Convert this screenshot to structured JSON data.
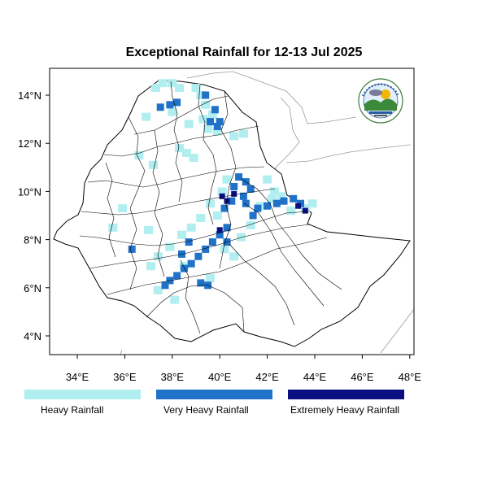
{
  "title": "Exceptional Rainfall for 12-13 Jul 2025",
  "axes": {
    "x_ticks": [
      {
        "value": 34,
        "label": "34°E"
      },
      {
        "value": 36,
        "label": "36°E"
      },
      {
        "value": 38,
        "label": "38°E"
      },
      {
        "value": 40,
        "label": "40°E"
      },
      {
        "value": 42,
        "label": "42°E"
      },
      {
        "value": 44,
        "label": "44°E"
      },
      {
        "value": 46,
        "label": "46°E"
      },
      {
        "value": 48,
        "label": "48°E"
      }
    ],
    "y_ticks": [
      {
        "value": 4,
        "label": "4°N"
      },
      {
        "value": 6,
        "label": "6°N"
      },
      {
        "value": 8,
        "label": "8°N"
      },
      {
        "value": 10,
        "label": "10°N"
      },
      {
        "value": 12,
        "label": "12°N"
      },
      {
        "value": 14,
        "label": "14°N"
      }
    ],
    "lon_range": [
      32.8,
      48.2
    ],
    "lat_range": [
      3.2,
      14.9
    ]
  },
  "legend": [
    {
      "label": "Heavy Rainfall",
      "color": "#b0eef0"
    },
    {
      "label": "Very Heavy Rainfall",
      "color": "#1f72c8"
    },
    {
      "label": "Extremely Heavy Rainfall",
      "color": "#0a0f82"
    }
  ],
  "colors": {
    "heavy": "#b0eef0",
    "very_heavy": "#1f72c8",
    "extreme": "#0a0f82",
    "outline": "#000000",
    "neighbor_border": "#9a9a9a"
  },
  "logo": {
    "icon": "meteorology-institute-logo-icon"
  },
  "rainfall_cells": {
    "heavy": [
      [
        37.3,
        14.3
      ],
      [
        37.6,
        14.5
      ],
      [
        38.0,
        14.5
      ],
      [
        38.3,
        14.3
      ],
      [
        39.0,
        14.3
      ],
      [
        39.2,
        14.0
      ],
      [
        39.4,
        13.6
      ],
      [
        39.7,
        13.2
      ],
      [
        39.3,
        13.0
      ],
      [
        39.5,
        12.6
      ],
      [
        39.9,
        12.5
      ],
      [
        41.0,
        12.4
      ],
      [
        40.6,
        12.3
      ],
      [
        38.7,
        12.8
      ],
      [
        38.0,
        13.3
      ],
      [
        36.9,
        13.1
      ],
      [
        36.6,
        11.5
      ],
      [
        37.2,
        11.1
      ],
      [
        38.3,
        11.8
      ],
      [
        38.6,
        11.6
      ],
      [
        38.9,
        11.4
      ],
      [
        40.3,
        10.5
      ],
      [
        40.1,
        10.0
      ],
      [
        39.6,
        9.5
      ],
      [
        39.9,
        9.0
      ],
      [
        39.2,
        8.9
      ],
      [
        38.8,
        8.5
      ],
      [
        38.4,
        8.2
      ],
      [
        37.9,
        7.7
      ],
      [
        37.4,
        7.3
      ],
      [
        37.1,
        6.9
      ],
      [
        37.4,
        5.9
      ],
      [
        40.2,
        7.6
      ],
      [
        40.6,
        7.3
      ],
      [
        40.9,
        8.1
      ],
      [
        41.3,
        8.6
      ],
      [
        41.7,
        9.4
      ],
      [
        42.2,
        9.7
      ],
      [
        42.6,
        9.8
      ],
      [
        43.0,
        9.2
      ],
      [
        43.6,
        9.3
      ],
      [
        43.9,
        9.5
      ],
      [
        42.0,
        10.5
      ],
      [
        42.3,
        10.0
      ],
      [
        35.9,
        9.3
      ],
      [
        35.5,
        8.5
      ],
      [
        37.0,
        8.4
      ],
      [
        38.1,
        5.5
      ],
      [
        39.6,
        6.4
      ],
      [
        38.5,
        6.9
      ]
    ],
    "very_heavy": [
      [
        37.5,
        13.5
      ],
      [
        37.9,
        13.6
      ],
      [
        38.2,
        13.7
      ],
      [
        39.4,
        14.0
      ],
      [
        39.8,
        13.4
      ],
      [
        39.6,
        12.9
      ],
      [
        39.9,
        12.7
      ],
      [
        40.0,
        12.9
      ],
      [
        40.8,
        10.6
      ],
      [
        41.1,
        10.4
      ],
      [
        41.3,
        10.1
      ],
      [
        40.6,
        10.2
      ],
      [
        41.0,
        9.8
      ],
      [
        40.5,
        9.6
      ],
      [
        40.2,
        9.3
      ],
      [
        41.1,
        9.5
      ],
      [
        41.6,
        9.3
      ],
      [
        42.0,
        9.4
      ],
      [
        42.4,
        9.5
      ],
      [
        42.7,
        9.6
      ],
      [
        43.1,
        9.7
      ],
      [
        43.4,
        9.5
      ],
      [
        41.4,
        9.0
      ],
      [
        40.3,
        8.5
      ],
      [
        40.0,
        8.2
      ],
      [
        39.7,
        7.9
      ],
      [
        39.4,
        7.6
      ],
      [
        39.1,
        7.3
      ],
      [
        38.8,
        7.0
      ],
      [
        38.5,
        6.8
      ],
      [
        38.2,
        6.5
      ],
      [
        37.9,
        6.3
      ],
      [
        37.7,
        6.1
      ],
      [
        38.4,
        7.4
      ],
      [
        38.7,
        7.9
      ],
      [
        39.2,
        6.2
      ],
      [
        39.5,
        6.1
      ],
      [
        36.3,
        7.6
      ],
      [
        40.3,
        7.9
      ]
    ],
    "extreme": [
      [
        40.1,
        9.8
      ],
      [
        40.3,
        9.6
      ],
      [
        40.6,
        9.9
      ],
      [
        43.3,
        9.4
      ],
      [
        43.6,
        9.2
      ],
      [
        40.0,
        8.4
      ]
    ]
  }
}
